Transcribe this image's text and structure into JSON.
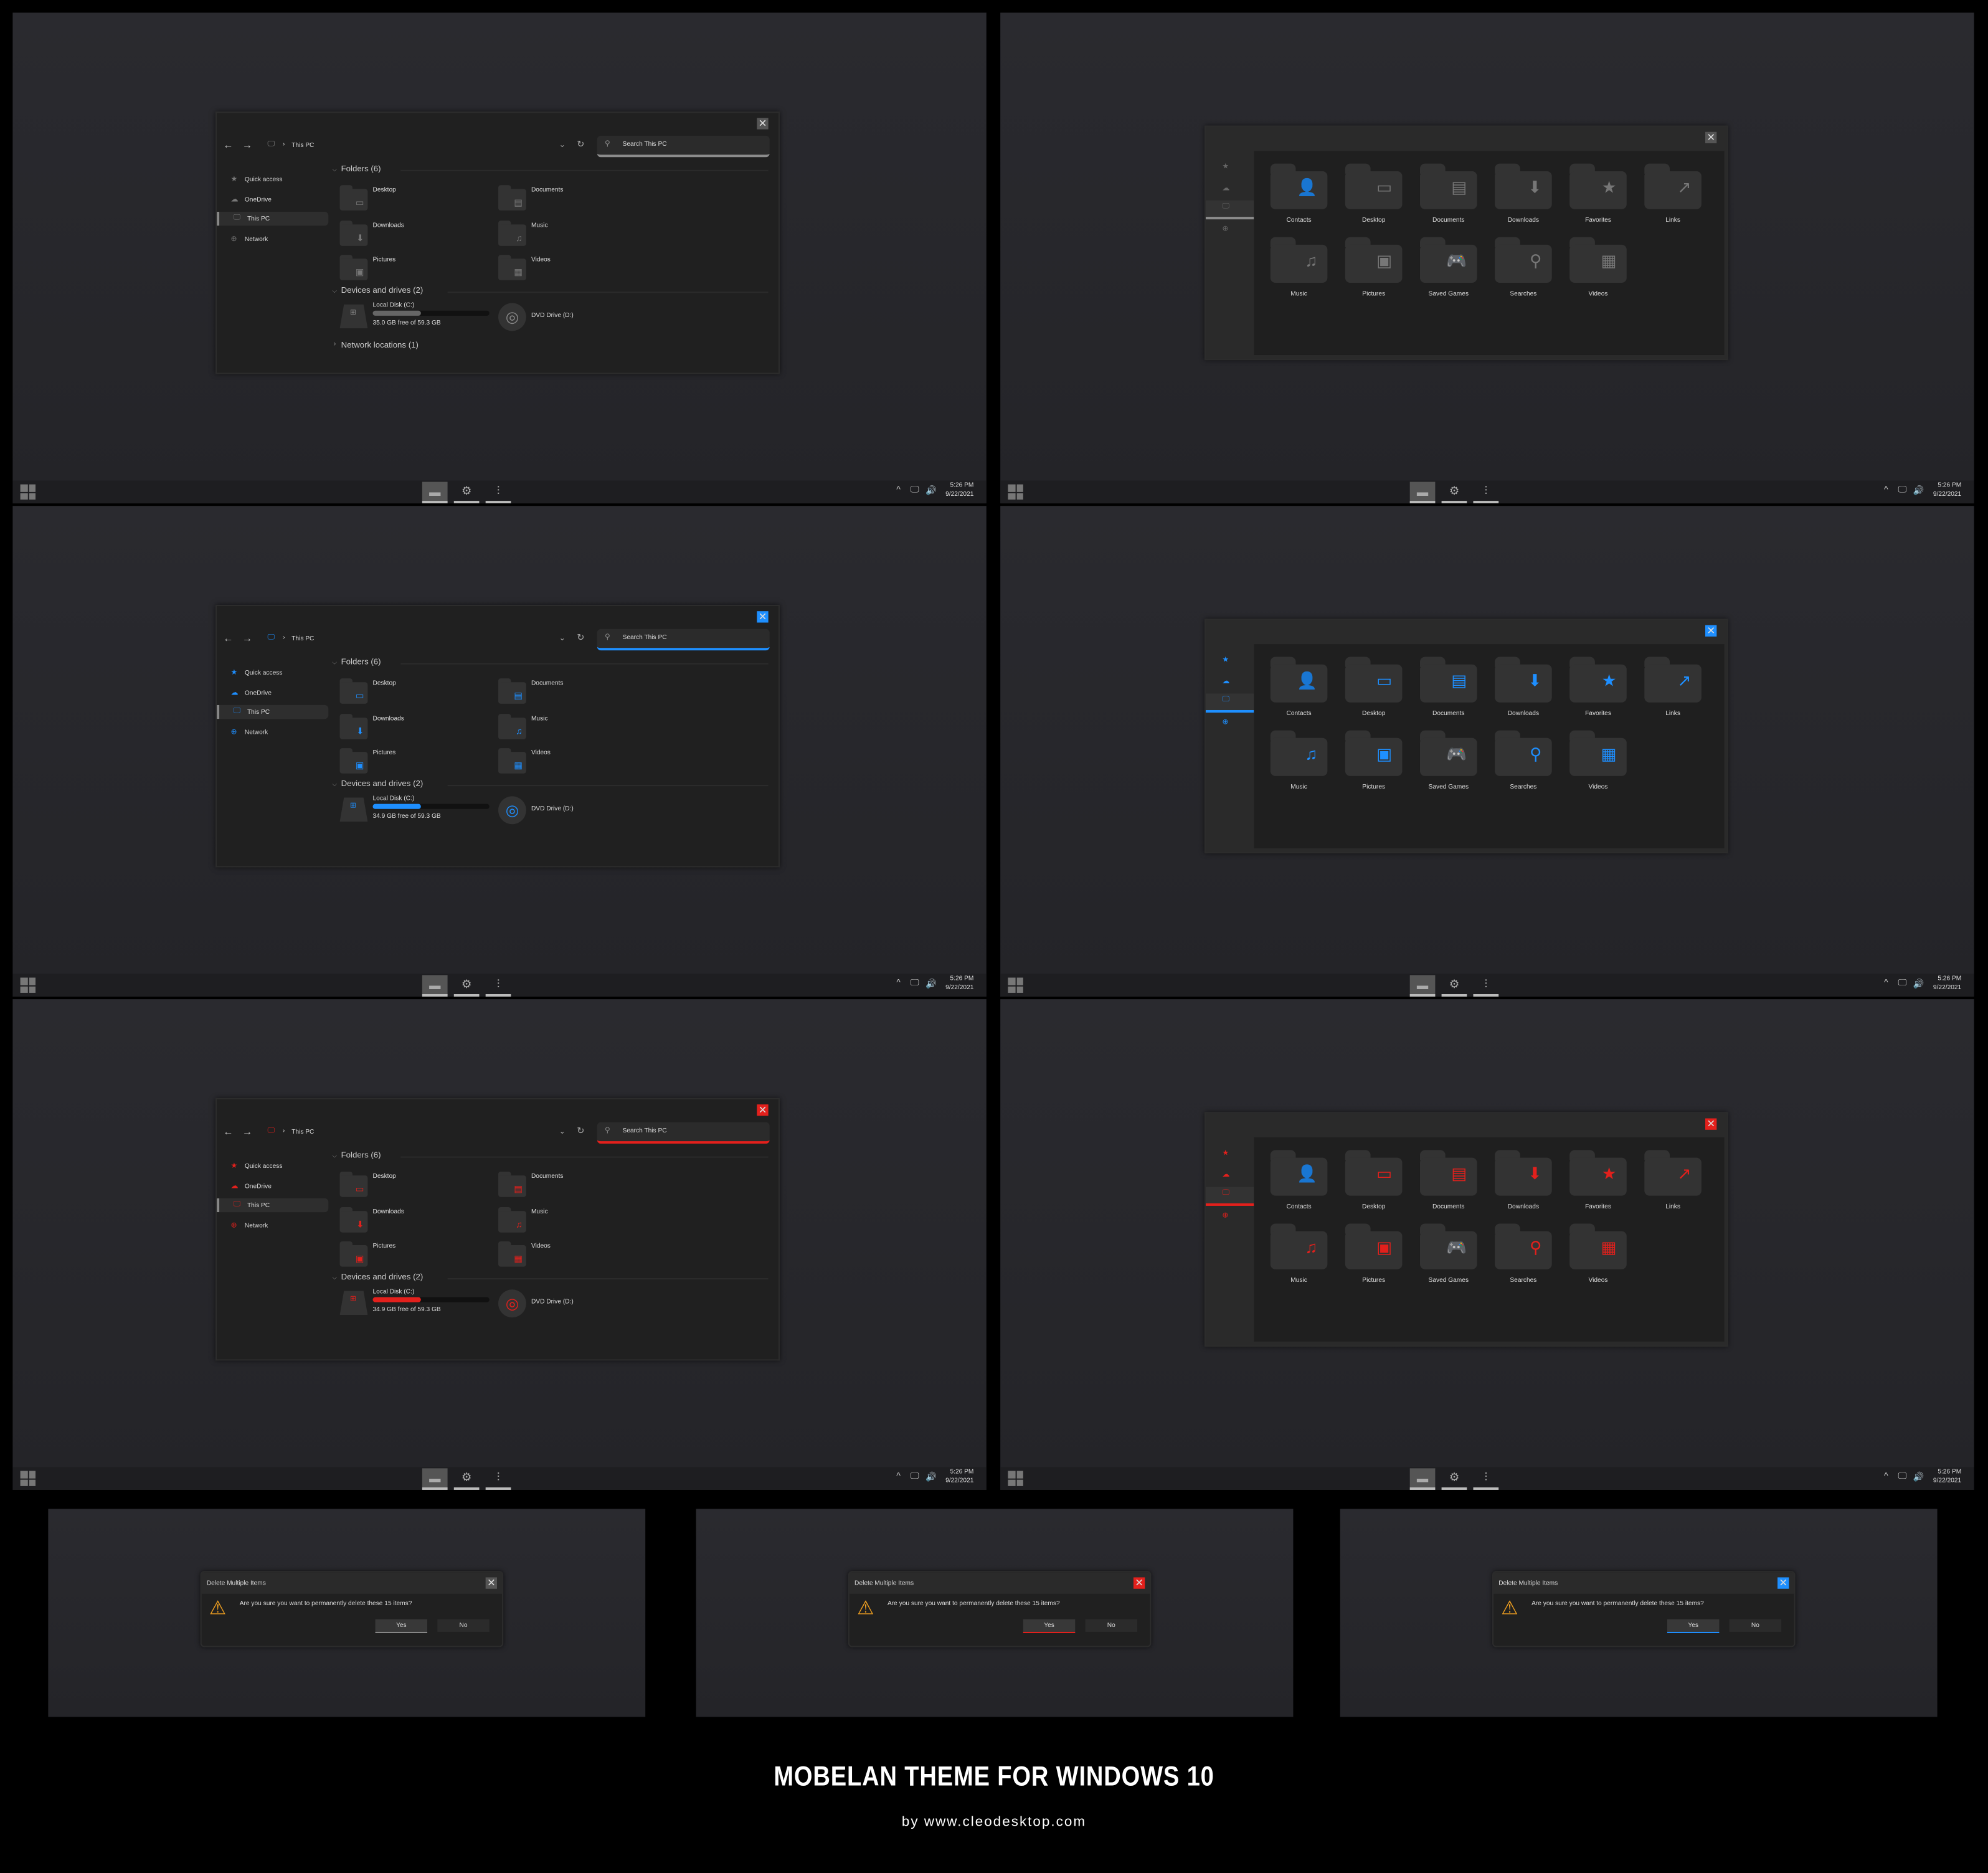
{
  "taskbar": {
    "time": "5:26 PM",
    "date": "9/22/2021",
    "tray_icons": [
      "chevron-up-icon",
      "network-icon",
      "volume-icon"
    ],
    "apps": [
      "file-explorer-icon",
      "settings-icon",
      "mixer-icon"
    ]
  },
  "explorer": {
    "breadcrumb": "This PC",
    "search_placeholder": "Search This PC",
    "sidebar": [
      "Quick access",
      "OneDrive",
      "This PC",
      "Network"
    ],
    "folders_header": "Folders (6)",
    "folders": [
      "Desktop",
      "Documents",
      "Downloads",
      "Music",
      "Pictures",
      "Videos"
    ],
    "devices_header": "Devices and drives (2)",
    "local_disk": "Local Disk (C:)",
    "dvd_drive": "DVD Drive (D:)",
    "network_header": "Network locations (1)"
  },
  "explorer_windows": [
    {
      "accent": "#8c8c8c",
      "free_text": "35.0 GB free of 59.3 GB",
      "used_fraction": 0.41,
      "show_network": true
    },
    {
      "accent": "#1e8fff",
      "free_text": "34.9 GB free of 59.3 GB",
      "used_fraction": 0.41,
      "show_network": false
    },
    {
      "accent": "#e3201c",
      "free_text": "34.9 GB free of 59.3 GB",
      "used_fraction": 0.41,
      "show_network": false
    }
  ],
  "libraries": {
    "items": [
      "Contacts",
      "Desktop",
      "Documents",
      "Downloads",
      "Favorites",
      "Links",
      "Music",
      "Pictures",
      "Saved Games",
      "Searches",
      "Videos"
    ]
  },
  "library_windows": [
    {
      "accent": "#8c8c8c"
    },
    {
      "accent": "#1e8fff"
    },
    {
      "accent": "#e3201c"
    }
  ],
  "dialog": {
    "title": "Delete Multiple Items",
    "message": "Are you sure you want to permanently delete these 15 items?",
    "yes": "Yes",
    "no": "No"
  },
  "dialogs": [
    {
      "accent": "#8c8c8c"
    },
    {
      "accent": "#e3201c"
    },
    {
      "accent": "#1e8fff"
    }
  ],
  "footer": {
    "title": "MOBELAN THEME FOR WINDOWS 10",
    "subtitle": "by www.cleodesktop.com"
  }
}
